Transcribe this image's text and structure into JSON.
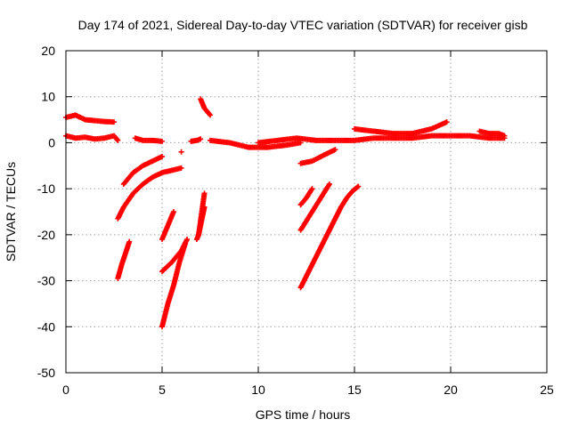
{
  "chart_data": {
    "type": "scatter",
    "title": "Day 174 of 2021, Sidereal Day-to-day VTEC variation (SDTVAR) for receiver gisb",
    "xlabel": "GPS time / hours",
    "ylabel": "SDTVAR / TECUs",
    "xlim": [
      0,
      25
    ],
    "ylim": [
      -50,
      20
    ],
    "xticks": [
      "0",
      "5",
      "10",
      "15",
      "20",
      "25"
    ],
    "yticks": [
      "20",
      "10",
      "0",
      "-10",
      "-20",
      "-30",
      "-40",
      "-50"
    ],
    "grid": true,
    "marker": "plus",
    "color": "#ff0000",
    "tracks": [
      {
        "x": [
          0.0,
          0.5,
          1.0,
          1.5,
          2.0,
          2.5
        ],
        "y": [
          5.5,
          6.0,
          5.0,
          4.8,
          4.6,
          4.5
        ]
      },
      {
        "x": [
          0.0,
          0.5,
          1.0,
          1.5,
          2.0,
          2.5,
          2.7
        ],
        "y": [
          1.5,
          1.0,
          1.2,
          0.8,
          1.0,
          1.5,
          0.5
        ]
      },
      {
        "x": [
          3.6,
          4.0,
          4.5,
          5.0
        ],
        "y": [
          1.0,
          0.5,
          0.5,
          0.3
        ]
      },
      {
        "x": [
          6.5,
          6.8,
          7.0
        ],
        "y": [
          0.3,
          0.5,
          0.8
        ]
      },
      {
        "x": [
          6.0
        ],
        "y": [
          -2.0
        ]
      },
      {
        "x": [
          7.0,
          7.2,
          7.5
        ],
        "y": [
          9.5,
          7.5,
          6.0
        ]
      },
      {
        "x": [
          7.5,
          8.5,
          9.5,
          10.5,
          11.5,
          12.2
        ],
        "y": [
          0.5,
          0.0,
          -1.0,
          -1.0,
          -0.5,
          0.0
        ]
      },
      {
        "x": [
          10.0,
          11.0,
          12.0,
          13.0,
          14.0,
          15.0,
          16.0,
          17.0,
          18.0,
          19.0,
          20.0,
          21.0,
          22.0,
          22.8
        ],
        "y": [
          0.0,
          0.5,
          1.0,
          0.5,
          0.5,
          0.5,
          1.0,
          1.0,
          1.0,
          1.5,
          1.5,
          1.5,
          1.0,
          1.0
        ]
      },
      {
        "x": [
          15.0,
          16.0,
          17.0,
          18.0,
          19.0,
          19.8
        ],
        "y": [
          3.0,
          2.5,
          2.0,
          2.0,
          3.0,
          4.5
        ]
      },
      {
        "x": [
          12.2,
          12.8,
          13.5,
          14.0
        ],
        "y": [
          -4.5,
          -4.0,
          -2.5,
          -1.5
        ]
      },
      {
        "x": [
          21.5,
          22.0,
          22.5,
          22.8
        ],
        "y": [
          2.5,
          2.0,
          2.0,
          1.5
        ]
      },
      {
        "x": [
          3.0,
          3.5,
          4.0,
          4.5,
          5.0
        ],
        "y": [
          -9.0,
          -6.5,
          -5.0,
          -4.0,
          -3.0
        ]
      },
      {
        "x": [
          2.7,
          3.0,
          3.5,
          4.0,
          4.5,
          5.0,
          5.5,
          6.0
        ],
        "y": [
          -16.5,
          -14.0,
          -11.0,
          -9.0,
          -7.5,
          -6.5,
          -6.0,
          -5.5
        ]
      },
      {
        "x": [
          2.7,
          2.9,
          3.1,
          3.3
        ],
        "y": [
          -29.5,
          -26.5,
          -24.0,
          -21.5
        ]
      },
      {
        "x": [
          5.0,
          5.3,
          5.6
        ],
        "y": [
          -21.0,
          -18.0,
          -15.0
        ]
      },
      {
        "x": [
          5.0,
          5.5,
          6.0,
          6.3
        ],
        "y": [
          -28.0,
          -26.0,
          -23.5,
          -21.0
        ]
      },
      {
        "x": [
          5.0,
          5.3,
          5.6,
          5.9,
          6.2
        ],
        "y": [
          -40.0,
          -35.0,
          -31.0,
          -26.0,
          -22.0
        ]
      },
      {
        "x": [
          6.9,
          7.0,
          7.1,
          7.2
        ],
        "y": [
          -20.0,
          -17.0,
          -14.0,
          -11.0
        ]
      },
      {
        "x": [
          6.8,
          6.9,
          7.0,
          7.1,
          7.2
        ],
        "y": [
          -21.0,
          -20.0,
          -18.0,
          -16.0,
          -14.0
        ]
      },
      {
        "x": [
          12.2,
          12.5,
          12.8,
          13.1,
          13.4,
          13.7,
          14.0,
          14.3,
          14.6,
          14.9,
          15.2
        ],
        "y": [
          -31.5,
          -29.0,
          -26.5,
          -24.0,
          -21.5,
          -19.0,
          -16.5,
          -14.0,
          -12.0,
          -10.5,
          -9.5
        ]
      },
      {
        "x": [
          12.2,
          12.5,
          12.8,
          13.1,
          13.4,
          13.7
        ],
        "y": [
          -19.0,
          -17.0,
          -15.0,
          -13.0,
          -11.0,
          -9.0
        ]
      },
      {
        "x": [
          12.2,
          12.5,
          12.8
        ],
        "y": [
          -13.5,
          -12.0,
          -10.0
        ]
      }
    ]
  }
}
